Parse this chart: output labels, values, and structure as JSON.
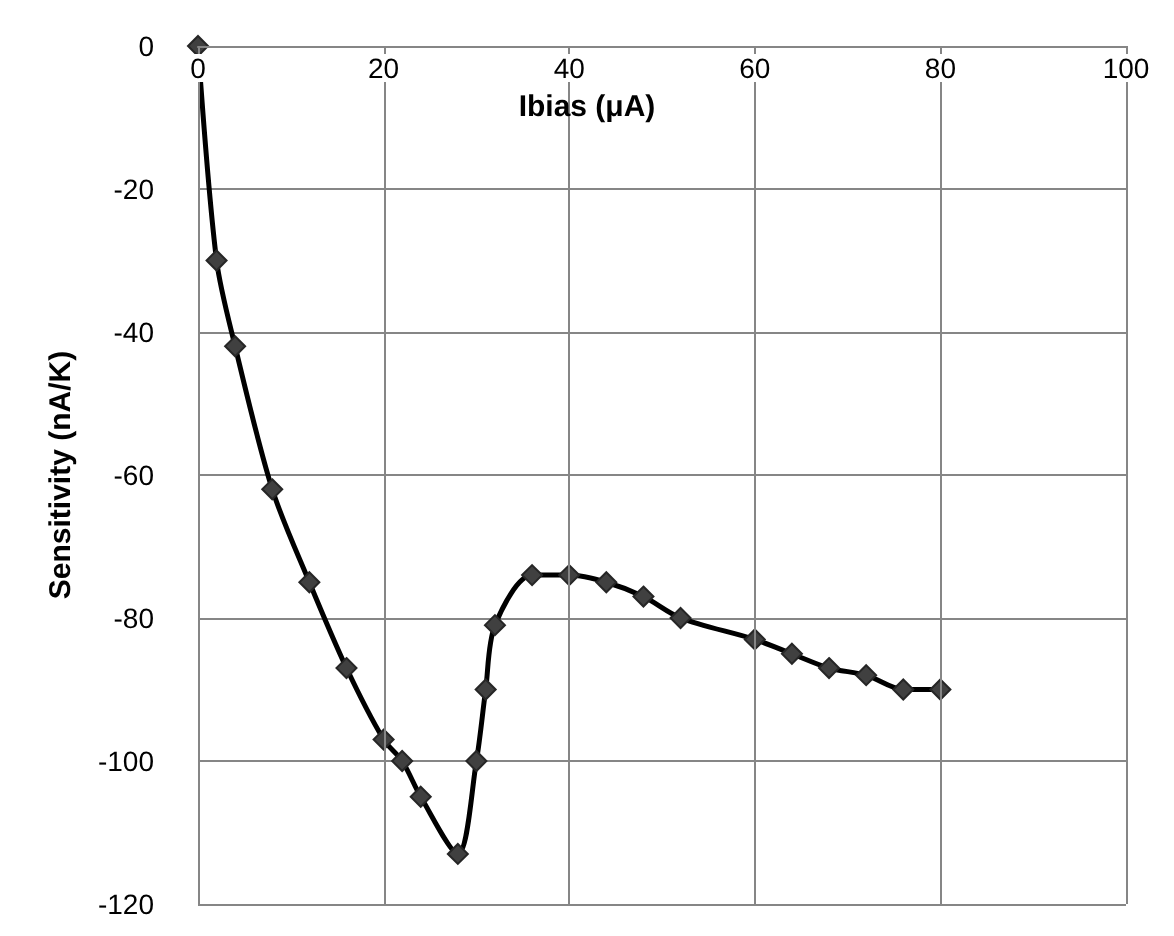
{
  "chart_data": {
    "type": "line",
    "xlabel": "Ibias (μA)",
    "ylabel": "Sensitivity (nA/K)",
    "x": [
      0,
      2,
      4,
      8,
      12,
      16,
      20,
      22,
      24,
      28,
      30,
      31,
      32,
      36,
      40,
      44,
      48,
      52,
      60,
      64,
      68,
      72,
      76,
      80
    ],
    "series": [
      {
        "color": "#000000",
        "values": [
          0,
          -30,
          -42,
          -62,
          -75,
          -87,
          -97,
          -100,
          -105,
          -113,
          -100,
          -90,
          -81,
          -74,
          -74,
          -75,
          -77,
          -80,
          -83,
          -85,
          -87,
          -88,
          -90,
          -90
        ]
      }
    ],
    "xlim": [
      0,
      100
    ],
    "xticks": [
      0,
      20,
      40,
      60,
      80,
      100
    ],
    "ylim": [
      -120,
      0
    ],
    "yticks": [
      -120,
      -100,
      -80,
      -60,
      -40,
      -20,
      0
    ],
    "grid": true,
    "marker": "diamond"
  }
}
